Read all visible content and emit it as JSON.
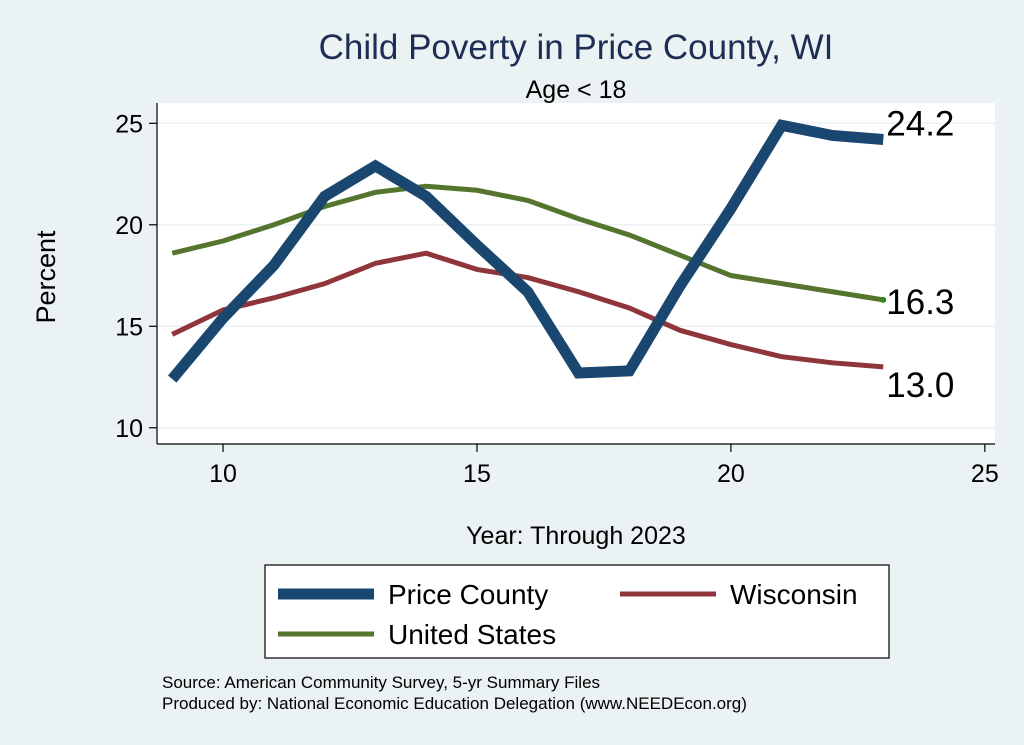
{
  "chart_data": {
    "type": "line",
    "title": "Child Poverty in Price County, WI",
    "subtitle": "Age < 18",
    "xlabel": "Year: Through 2023",
    "ylabel": "Percent",
    "xlim": [
      8.7,
      25.2
    ],
    "ylim": [
      9.2,
      26.0
    ],
    "x_ticks": [
      10,
      15,
      20,
      25
    ],
    "y_ticks": [
      10,
      15,
      20,
      25
    ],
    "grid": true,
    "legend_position": "bottom",
    "series": [
      {
        "name": "Price County",
        "color": "#1a476f",
        "x": [
          9,
          10,
          11,
          12,
          13,
          14,
          15,
          16,
          17,
          18,
          19,
          20,
          21,
          22,
          23
        ],
        "values": [
          12.4,
          15.4,
          18.0,
          21.4,
          22.9,
          21.4,
          19.0,
          16.7,
          12.7,
          12.8,
          17.0,
          20.8,
          24.9,
          24.4,
          24.2
        ],
        "end_label": "24.2"
      },
      {
        "name": "Wisconsin",
        "color": "#90353b",
        "x": [
          9,
          10,
          11,
          12,
          13,
          14,
          15,
          16,
          17,
          18,
          19,
          20,
          21,
          22,
          23
        ],
        "values": [
          14.6,
          15.8,
          16.4,
          17.1,
          18.1,
          18.6,
          17.8,
          17.4,
          16.7,
          15.9,
          14.8,
          14.1,
          13.5,
          13.2,
          13.0
        ],
        "end_label": "13.0"
      },
      {
        "name": "United States",
        "color": "#55752f",
        "x": [
          9,
          10,
          11,
          12,
          13,
          14,
          15,
          16,
          17,
          18,
          19,
          20,
          21,
          22,
          23
        ],
        "values": [
          18.6,
          19.2,
          20.0,
          20.9,
          21.6,
          21.9,
          21.7,
          21.2,
          20.3,
          19.5,
          18.5,
          17.5,
          17.1,
          16.7,
          16.3
        ],
        "end_label": "16.3"
      }
    ]
  },
  "footer": {
    "source": "Source: American Community Survey, 5-yr Summary Files",
    "produced_by": "Produced by: National Economic Education Delegation (www.NEEDEcon.org)"
  }
}
